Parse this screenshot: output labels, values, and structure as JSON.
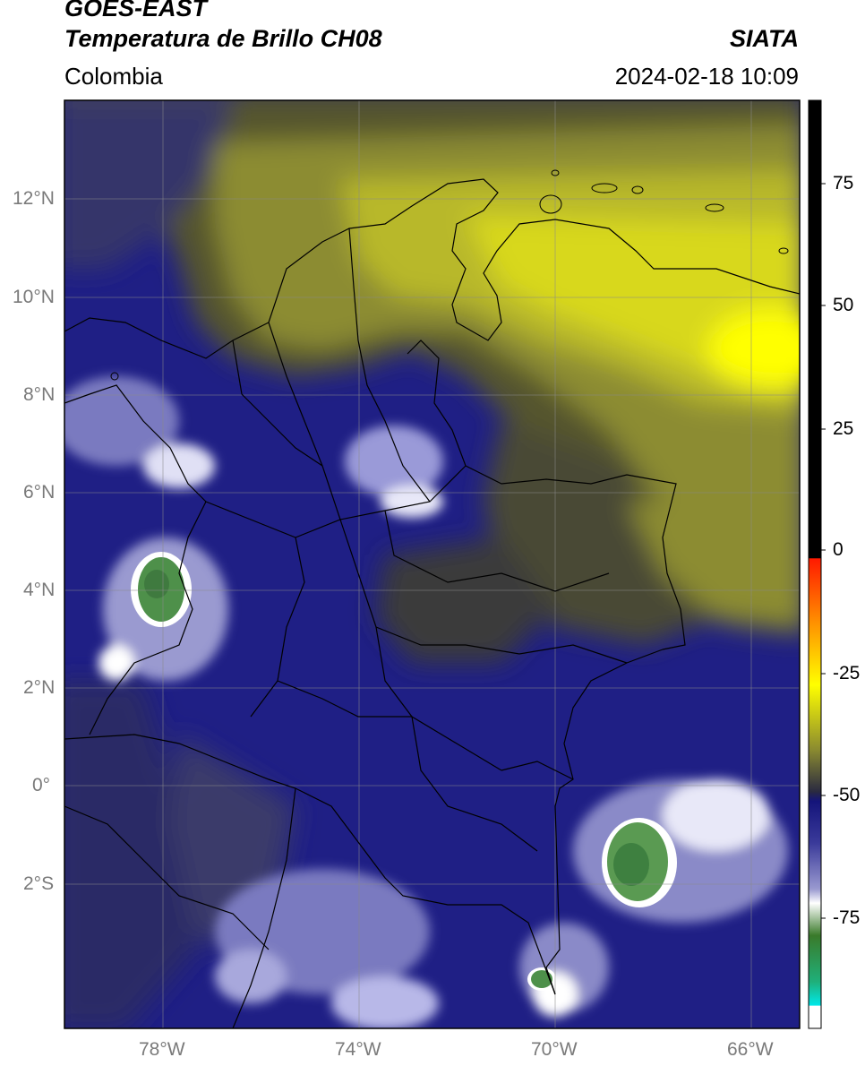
{
  "header": {
    "satellite": "GOES-EAST",
    "product": "Temperatura de Brillo CH08",
    "brand": "SIATA",
    "region": "Colombia",
    "datetime": "2024-02-18 10:09"
  },
  "map": {
    "lat_labels": [
      "12°N",
      "10°N",
      "8°N",
      "6°N",
      "4°N",
      "2°N",
      "0°",
      "2°S"
    ],
    "lon_labels": [
      "78°W",
      "74°W",
      "70°W",
      "66°W"
    ],
    "lat_range": [
      -5,
      14
    ],
    "lon_range": [
      -80,
      -65
    ]
  },
  "colorbar": {
    "range": [
      -95,
      90
    ],
    "ticks": [
      "75",
      "50",
      "25",
      "0",
      "-25",
      "-50",
      "-75"
    ],
    "colors": {
      "cloud_top_green": "#3f8a3f",
      "cold_white": "#ffffff",
      "navy": "#1a1a7a",
      "olive": "#8a8a30",
      "yellow": "#ffff00",
      "orange": "#ff8c00",
      "red": "#ff0000",
      "black": "#000000",
      "cyan": "#00e0e0"
    }
  }
}
